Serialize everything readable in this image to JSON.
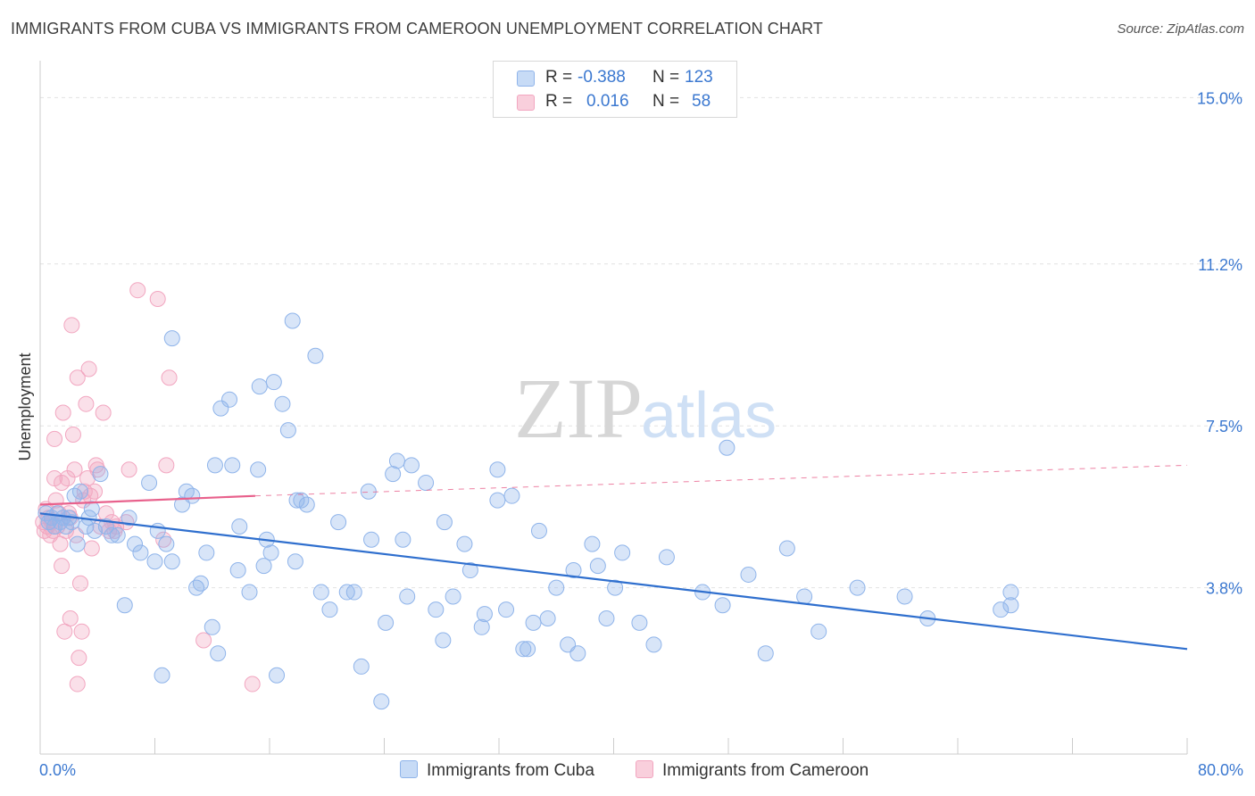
{
  "header": {
    "title": "IMMIGRANTS FROM CUBA VS IMMIGRANTS FROM CAMEROON UNEMPLOYMENT CORRELATION CHART",
    "source": "Source: ZipAtlas.com"
  },
  "watermark": {
    "zip": "ZIP",
    "atlas": "atlas"
  },
  "legend": {
    "r_label": "R =",
    "n_label": "N =",
    "rows": [
      {
        "r": "-0.388",
        "n": "123"
      },
      {
        "r": "0.016",
        "n": "58"
      }
    ]
  },
  "colors": {
    "cuba": "#8fb4ea",
    "cuba_line": "#2f6fce",
    "cameroon": "#f2a6c0",
    "cameroon_line": "#e8618c",
    "axis_text": "#3b78d0",
    "grid": "#e2e2e2"
  },
  "chart_data": {
    "type": "scatter",
    "title": "IMMIGRANTS FROM CUBA VS IMMIGRANTS FROM CAMEROON UNEMPLOYMENT CORRELATION CHART",
    "xlabel": "",
    "ylabel": "Unemployment",
    "xlim": [
      0,
      80
    ],
    "ylim": [
      0,
      15.6
    ],
    "x_tick_labels": [
      "0.0%",
      "80.0%"
    ],
    "y_ticks": [
      3.8,
      7.5,
      11.2,
      15.0
    ],
    "y_tick_labels": [
      "3.8%",
      "7.5%",
      "11.2%",
      "15.0%"
    ],
    "legend_position": "top-center",
    "series": [
      {
        "name": "Immigrants from Cuba",
        "r": -0.388,
        "n": 123,
        "trend": {
          "x": [
            0,
            80
          ],
          "y": [
            5.5,
            2.4
          ]
        },
        "points": [
          [
            0.4,
            5.5
          ],
          [
            0.6,
            5.3
          ],
          [
            0.8,
            5.4
          ],
          [
            1.0,
            5.2
          ],
          [
            1.2,
            5.5
          ],
          [
            1.4,
            5.3
          ],
          [
            1.6,
            5.4
          ],
          [
            1.8,
            5.2
          ],
          [
            2.0,
            5.4
          ],
          [
            2.2,
            5.3
          ],
          [
            2.4,
            5.9
          ],
          [
            2.6,
            4.8
          ],
          [
            2.8,
            6.0
          ],
          [
            3.2,
            5.2
          ],
          [
            3.4,
            5.4
          ],
          [
            3.6,
            5.6
          ],
          [
            3.8,
            5.1
          ],
          [
            4.2,
            6.4
          ],
          [
            4.6,
            5.2
          ],
          [
            5.0,
            5.0
          ],
          [
            5.4,
            5.0
          ],
          [
            5.9,
            3.4
          ],
          [
            6.2,
            5.4
          ],
          [
            6.6,
            4.8
          ],
          [
            7.0,
            4.6
          ],
          [
            7.6,
            6.2
          ],
          [
            8.0,
            4.4
          ],
          [
            8.2,
            5.1
          ],
          [
            8.5,
            1.8
          ],
          [
            8.8,
            4.8
          ],
          [
            9.2,
            4.4
          ],
          [
            9.2,
            9.5
          ],
          [
            9.9,
            5.7
          ],
          [
            10.2,
            6.0
          ],
          [
            10.6,
            5.9
          ],
          [
            10.9,
            3.8
          ],
          [
            11.2,
            3.9
          ],
          [
            11.6,
            4.6
          ],
          [
            12.0,
            2.9
          ],
          [
            12.2,
            6.6
          ],
          [
            12.4,
            2.3
          ],
          [
            12.6,
            7.9
          ],
          [
            13.2,
            8.1
          ],
          [
            13.4,
            6.6
          ],
          [
            13.8,
            4.2
          ],
          [
            13.9,
            5.2
          ],
          [
            14.6,
            3.7
          ],
          [
            15.2,
            6.5
          ],
          [
            15.3,
            8.4
          ],
          [
            15.6,
            4.3
          ],
          [
            15.8,
            4.9
          ],
          [
            16.1,
            4.6
          ],
          [
            16.3,
            8.5
          ],
          [
            16.5,
            1.8
          ],
          [
            16.9,
            8.0
          ],
          [
            17.3,
            7.4
          ],
          [
            17.6,
            9.9
          ],
          [
            17.8,
            4.4
          ],
          [
            17.9,
            5.8
          ],
          [
            18.2,
            5.8
          ],
          [
            18.6,
            5.7
          ],
          [
            19.2,
            9.1
          ],
          [
            19.6,
            3.7
          ],
          [
            20.2,
            3.3
          ],
          [
            20.8,
            5.3
          ],
          [
            21.4,
            3.7
          ],
          [
            21.9,
            3.7
          ],
          [
            22.4,
            2.0
          ],
          [
            22.9,
            6.0
          ],
          [
            23.1,
            4.9
          ],
          [
            23.8,
            1.2
          ],
          [
            24.1,
            3.0
          ],
          [
            24.6,
            6.4
          ],
          [
            24.9,
            6.7
          ],
          [
            25.3,
            4.9
          ],
          [
            25.6,
            3.6
          ],
          [
            25.9,
            6.6
          ],
          [
            26.9,
            6.2
          ],
          [
            27.6,
            3.3
          ],
          [
            28.1,
            2.6
          ],
          [
            28.2,
            5.3
          ],
          [
            28.8,
            3.6
          ],
          [
            29.6,
            4.8
          ],
          [
            30.0,
            4.2
          ],
          [
            30.8,
            2.9
          ],
          [
            31.0,
            3.2
          ],
          [
            31.9,
            5.8
          ],
          [
            31.9,
            6.5
          ],
          [
            32.5,
            3.3
          ],
          [
            32.9,
            5.9
          ],
          [
            33.7,
            2.4
          ],
          [
            34.0,
            2.4
          ],
          [
            34.4,
            3.0
          ],
          [
            34.8,
            5.1
          ],
          [
            35.4,
            3.1
          ],
          [
            36.0,
            3.8
          ],
          [
            36.8,
            2.5
          ],
          [
            37.2,
            4.2
          ],
          [
            37.5,
            2.3
          ],
          [
            38.5,
            4.8
          ],
          [
            38.9,
            4.3
          ],
          [
            39.5,
            3.1
          ],
          [
            40.1,
            3.8
          ],
          [
            40.6,
            4.6
          ],
          [
            41.8,
            3.0
          ],
          [
            42.8,
            2.5
          ],
          [
            43.7,
            4.5
          ],
          [
            46.2,
            3.7
          ],
          [
            47.6,
            3.4
          ],
          [
            47.9,
            7.0
          ],
          [
            49.4,
            4.1
          ],
          [
            50.6,
            2.3
          ],
          [
            52.1,
            4.7
          ],
          [
            53.3,
            3.6
          ],
          [
            54.3,
            2.8
          ],
          [
            57.0,
            3.8
          ],
          [
            60.3,
            3.6
          ],
          [
            61.9,
            3.1
          ],
          [
            67.0,
            3.3
          ],
          [
            67.7,
            3.4
          ],
          [
            67.7,
            3.7
          ]
        ]
      },
      {
        "name": "Immigrants from Cameroon",
        "r": 0.016,
        "n": 58,
        "trend_solid": {
          "x": [
            0,
            15
          ],
          "y": [
            5.7,
            5.9
          ]
        },
        "trend_dashed": {
          "x": [
            15,
            80
          ],
          "y": [
            5.9,
            6.6
          ]
        },
        "points": [
          [
            0.2,
            5.3
          ],
          [
            0.3,
            5.1
          ],
          [
            0.4,
            5.6
          ],
          [
            0.5,
            5.2
          ],
          [
            0.6,
            5.4
          ],
          [
            0.7,
            5.0
          ],
          [
            0.8,
            5.3
          ],
          [
            0.9,
            5.1
          ],
          [
            1.0,
            6.3
          ],
          [
            1.0,
            7.2
          ],
          [
            1.1,
            5.8
          ],
          [
            1.2,
            5.2
          ],
          [
            1.3,
            5.5
          ],
          [
            1.4,
            4.8
          ],
          [
            1.5,
            6.2
          ],
          [
            1.5,
            4.3
          ],
          [
            1.6,
            7.8
          ],
          [
            1.7,
            2.8
          ],
          [
            1.8,
            5.1
          ],
          [
            1.9,
            6.3
          ],
          [
            2.0,
            5.5
          ],
          [
            2.1,
            5.4
          ],
          [
            2.1,
            3.1
          ],
          [
            2.2,
            9.8
          ],
          [
            2.3,
            7.3
          ],
          [
            2.4,
            6.5
          ],
          [
            2.5,
            5.0
          ],
          [
            2.6,
            1.6
          ],
          [
            2.6,
            8.6
          ],
          [
            2.7,
            2.2
          ],
          [
            2.8,
            3.9
          ],
          [
            2.9,
            2.8
          ],
          [
            3.0,
            5.8
          ],
          [
            3.1,
            6.0
          ],
          [
            3.2,
            8.0
          ],
          [
            3.3,
            6.3
          ],
          [
            3.4,
            8.8
          ],
          [
            3.5,
            5.9
          ],
          [
            3.6,
            4.7
          ],
          [
            3.8,
            6.0
          ],
          [
            3.9,
            6.6
          ],
          [
            4.0,
            6.5
          ],
          [
            4.2,
            5.2
          ],
          [
            4.4,
            7.8
          ],
          [
            4.6,
            5.5
          ],
          [
            4.8,
            5.1
          ],
          [
            5.0,
            5.3
          ],
          [
            5.2,
            5.1
          ],
          [
            5.3,
            5.2
          ],
          [
            6.2,
            6.5
          ],
          [
            6.8,
            10.6
          ],
          [
            8.2,
            10.4
          ],
          [
            8.6,
            4.9
          ],
          [
            8.8,
            6.6
          ],
          [
            9.0,
            8.6
          ],
          [
            11.4,
            2.6
          ],
          [
            14.8,
            1.6
          ],
          [
            6.0,
            5.3
          ]
        ]
      }
    ]
  }
}
